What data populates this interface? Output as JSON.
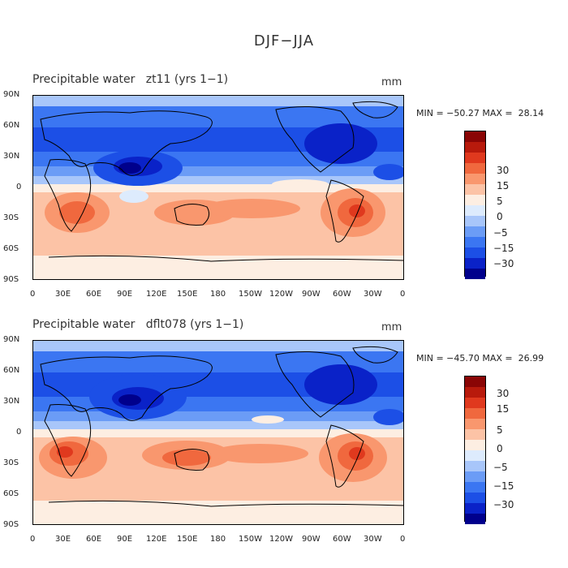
{
  "page": {
    "title": "DJF−JJA"
  },
  "colors": {
    "scale": [
      "#00008c",
      "#0a22c8",
      "#1c4fe6",
      "#3b76f2",
      "#6b9cf6",
      "#a8c6fa",
      "#ddebfd",
      "#fdeee2",
      "#fcc3a6",
      "#f9976e",
      "#f0683e",
      "#e0391e",
      "#b81a0c",
      "#8a0505"
    ],
    "background": "#ffffff"
  },
  "panels": [
    {
      "title": "Precipitable water   zt11 (yrs 1−1)",
      "units": "mm",
      "minmax": "MIN = −50.27 MAX =  28.14",
      "lat_labels": [
        "90N",
        "60N",
        "30N",
        "0",
        "30S",
        "60S",
        "90S"
      ],
      "lon_labels": [
        "0",
        "30E",
        "60E",
        "90E",
        "120E",
        "150E",
        "180",
        "150W",
        "120W",
        "90W",
        "60W",
        "30W",
        "0"
      ],
      "colorbar": {
        "labels": [
          "30",
          "15",
          "5",
          "0",
          "−5",
          "−15",
          "−30"
        ]
      }
    },
    {
      "title": "Precipitable water   dflt078 (yrs 1−1)",
      "units": "mm",
      "minmax": "MIN = −45.70 MAX =  26.99",
      "lat_labels": [
        "90N",
        "60N",
        "30N",
        "0",
        "30S",
        "60S",
        "90S"
      ],
      "lon_labels": [
        "0",
        "30E",
        "60E",
        "90E",
        "120E",
        "150E",
        "180",
        "150W",
        "120W",
        "90W",
        "60W",
        "30W",
        "0"
      ],
      "colorbar": {
        "labels": [
          "30",
          "15",
          "5",
          "0",
          "−5",
          "−15",
          "−30"
        ]
      }
    }
  ]
}
